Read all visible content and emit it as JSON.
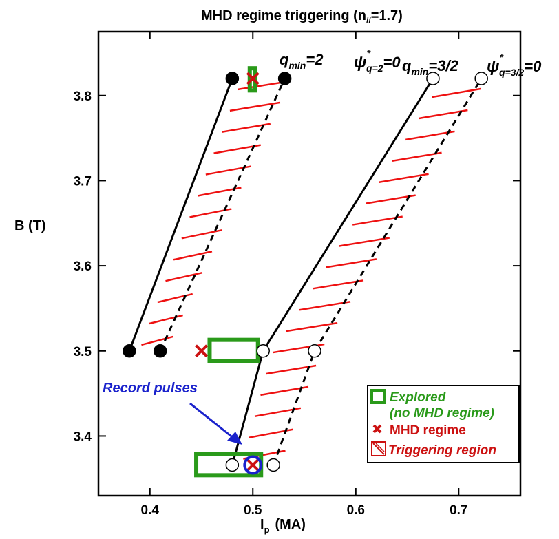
{
  "chart_data": {
    "type": "scatter",
    "title": "MHD regime triggering (n",
    "title_sub": "//",
    "title_end": "=1.7)",
    "xlabel": "I",
    "xlabel_sub": "p",
    "xlabel_unit": "(MA)",
    "ylabel": "B  (T)",
    "xlim": [
      0.35,
      0.76
    ],
    "ylim": [
      3.33,
      3.875
    ],
    "xticks": [
      "0.4",
      "0.5",
      "0.6",
      "0.7"
    ],
    "yticks": [
      "3.4",
      "3.5",
      "3.6",
      "3.7",
      "3.8"
    ],
    "xtick_values": [
      0.4,
      0.5,
      0.6,
      0.7
    ],
    "ytick_values": [
      3.4,
      3.5,
      3.6,
      3.7,
      3.8
    ],
    "series": [
      {
        "style": "solid",
        "marker": "filled",
        "points": [
          [
            0.38,
            3.5
          ],
          [
            0.48,
            3.82
          ]
        ]
      },
      {
        "style": "dashed",
        "marker": "filled",
        "points": [
          [
            0.41,
            3.5
          ],
          [
            0.531,
            3.82
          ]
        ]
      },
      {
        "style": "solid",
        "marker": "open",
        "points": [
          [
            0.48,
            3.366
          ],
          [
            0.51,
            3.5
          ],
          [
            0.675,
            3.82
          ]
        ]
      },
      {
        "style": "dashed",
        "marker": "open",
        "points": [
          [
            0.52,
            3.366
          ],
          [
            0.56,
            3.5
          ],
          [
            0.722,
            3.82
          ]
        ]
      }
    ],
    "explored": [
      {
        "x": [
          0.458,
          0.505
        ],
        "y": [
          3.488,
          3.513
        ]
      },
      {
        "x": [
          0.445,
          0.508
        ],
        "y": [
          3.354,
          3.379
        ]
      },
      {
        "x": [
          0.497,
          0.502
        ],
        "y": [
          3.806,
          3.832
        ]
      }
    ],
    "mhd_regime": [
      [
        0.45,
        3.5
      ],
      [
        0.5,
        3.366
      ],
      [
        0.5,
        3.82
      ]
    ],
    "record_pulse": [
      0.5,
      3.366
    ],
    "triggering_regions": [
      {
        "left": [
          [
            0.38,
            3.5
          ],
          [
            0.48,
            3.82
          ]
        ],
        "right": [
          [
            0.41,
            3.5
          ],
          [
            0.531,
            3.82
          ]
        ],
        "shift": 0.008
      },
      {
        "left": [
          [
            0.48,
            3.366
          ],
          [
            0.51,
            3.5
          ],
          [
            0.675,
            3.82
          ]
        ],
        "right": [
          [
            0.52,
            3.366
          ],
          [
            0.56,
            3.5
          ],
          [
            0.722,
            3.82
          ]
        ],
        "shift": 0.008
      }
    ],
    "colors": {
      "hatch": "#ee1111",
      "explored": "#2a9a1a",
      "mhd": "#cc1111",
      "record": "#1a22cc"
    },
    "annotations": {
      "qmin2_main": "q",
      "qmin2_sub": "min",
      "qmin2_val": "=2",
      "psi_q2_sym": "ψ",
      "psi_q2_star": "*",
      "psi_q2_sub": "q=2",
      "psi_q2_val": "=0",
      "qmin32_main": "q",
      "qmin32_sub": "min",
      "qmin32_val": "=3/2",
      "psi_q32_sym": "ψ",
      "psi_q32_star": "*",
      "psi_q32_sub": "q=3/2",
      "psi_q32_val": "=0",
      "record": "Record pulses"
    },
    "legend": {
      "placement": "bottom-right",
      "explored_line1": "Explored",
      "explored_line2": "(no MHD regime)",
      "mhd": "MHD regime",
      "trigger": "Triggering region"
    }
  }
}
